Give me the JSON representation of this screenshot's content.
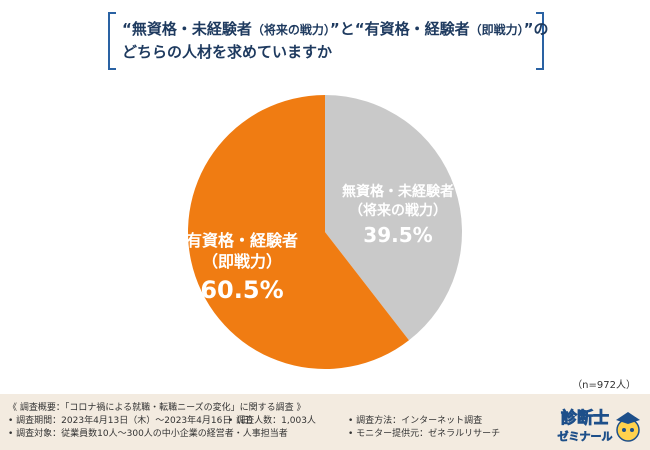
{
  "title": {
    "line1_q_open": "“無資格・未経験者",
    "line1_small1": "（将来の戦力）",
    "line1_mid": "”と“有資格・経験者",
    "line1_small2": "（即戦力）",
    "line1_end": "”の",
    "line2": "どちらの人材を求めていますか"
  },
  "chart_data": {
    "type": "pie",
    "title": "“無資格・未経験者（将来の戦力）”と“有資格・経験者（即戦力）”の どちらの人材を求めていますか",
    "slices": [
      {
        "name": "無資格・未経験者",
        "sub": "（将来の戦力）",
        "value": 39.5,
        "value_label": "39.5%",
        "color": "#c9c9c9",
        "label_color": "#ffffff"
      },
      {
        "name": "有資格・経験者",
        "sub": "（即戦力）",
        "value": 60.5,
        "value_label": "60.5%",
        "color": "#f07c12",
        "label_color": "#ffffff"
      }
    ],
    "start": "12 o'clock",
    "direction": "clockwise"
  },
  "n_note": "（n=972人）",
  "survey": {
    "overview": "《 調査概要：「コロナ禍による就職・転職ニーズの変化」に関する調査 》",
    "period": "• 調査期間：2023年4月13日（木）〜2023年4月16日（日）",
    "count": "• 調査人数：1,003人",
    "method": "• 調査方法：インターネット調査",
    "target": "• 調査対象：従業員数10人〜300人の中小企業の経営者・人事担当者",
    "provider": "• モニター提供元：ゼネラルリサーチ"
  },
  "logo": {
    "line1": "診断士",
    "line2": "ゼミナール",
    "colors": {
      "fill": "#f4b400",
      "outline": "#1d4f8a"
    }
  }
}
